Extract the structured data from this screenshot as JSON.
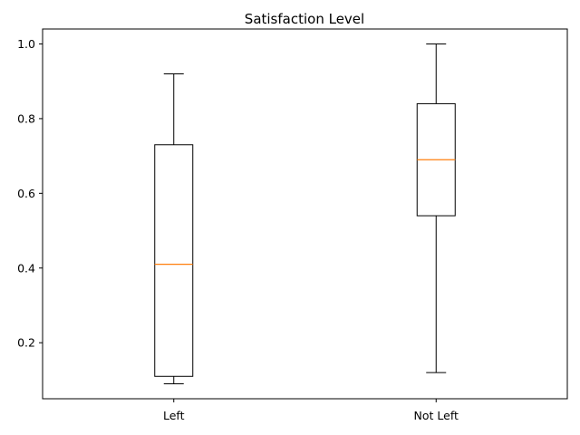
{
  "chart_data": {
    "type": "box",
    "title": "Satisfaction Level",
    "xlabel": "",
    "ylabel": "",
    "categories": [
      "Left",
      "Not Left"
    ],
    "boxes": [
      {
        "label": "Left",
        "whisker_low": 0.09,
        "q1": 0.11,
        "median": 0.41,
        "q3": 0.73,
        "whisker_high": 0.92
      },
      {
        "label": "Not Left",
        "whisker_low": 0.12,
        "q1": 0.54,
        "median": 0.69,
        "q3": 0.84,
        "whisker_high": 1.0
      }
    ],
    "ylim": [
      0.05,
      1.04
    ],
    "yticks": [
      0.2,
      0.4,
      0.6,
      0.8,
      1.0
    ],
    "ytick_labels": [
      "0.2",
      "0.4",
      "0.6",
      "0.8",
      "1.0"
    ],
    "grid": false,
    "colors": {
      "box": "#000000",
      "median": "#ff7f0e"
    }
  }
}
